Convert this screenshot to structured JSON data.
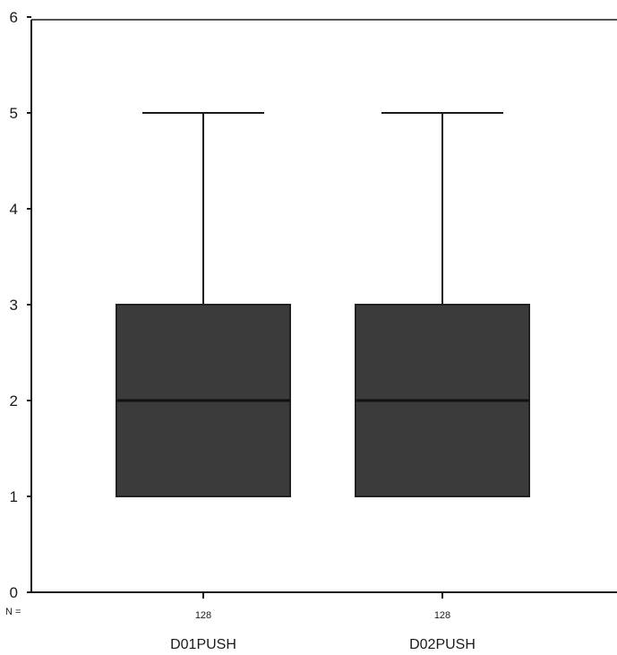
{
  "chart_data": {
    "type": "box",
    "title": "",
    "xlabel": "",
    "ylabel": "",
    "ylim": [
      0,
      6
    ],
    "yticks": [
      "0",
      "1",
      "2",
      "3",
      "4",
      "5",
      "6"
    ],
    "grid": false,
    "n_label": "N =",
    "categories": [
      "D01PUSH",
      "D02PUSH"
    ],
    "n": [
      "128",
      "128"
    ],
    "boxes": [
      {
        "name": "D01PUSH",
        "n": 128,
        "min": 1,
        "q1": 1,
        "median": 2,
        "q3": 3,
        "max": 5
      },
      {
        "name": "D02PUSH",
        "n": 128,
        "min": 1,
        "q1": 1,
        "median": 2,
        "q3": 3,
        "max": 5
      }
    ],
    "colors": {
      "box_fill": "#3b3b3b",
      "line": "#1a1a1a"
    }
  }
}
